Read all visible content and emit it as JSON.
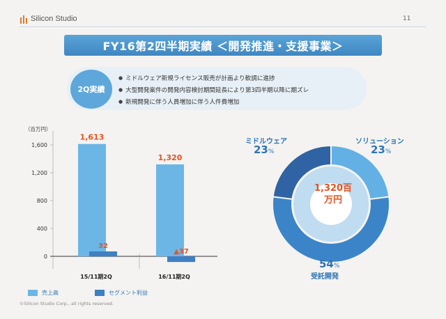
{
  "header": {
    "logo_text": "Silicon Studio",
    "page_number": "11"
  },
  "title": "FY16第2四半期実績 ＜開発推進・支援事業＞",
  "summary": {
    "badge": "2Q実績",
    "bullets": [
      "ミドルウェア新規ライセンス販売が計画より軟調に進捗",
      "大型開発案件の開発内容検討期間延長により第3四半期以降に期ズレ",
      "新規開発に伴う人員増加に伴う人件費増加"
    ]
  },
  "chart_data": [
    {
      "type": "bar",
      "ylabel": "（百万円）",
      "ylim": [
        -100,
        1750
      ],
      "yticks": [
        0,
        400,
        800,
        1200,
        1600
      ],
      "ytick_labels": [
        "0",
        "400",
        "800",
        "1,200",
        "1,600"
      ],
      "categories": [
        "15/11期2Q",
        "16/11期2Q"
      ],
      "series": [
        {
          "name": "売上高",
          "values": [
            1613,
            1320
          ],
          "labels": [
            "1,613",
            "1,320"
          ]
        },
        {
          "name": "セグメント利益",
          "values": [
            32,
            -37
          ],
          "labels": [
            "32",
            "▲37"
          ]
        }
      ],
      "colors": {
        "sales": "#6cb6e6",
        "profit": "#3f7fc4",
        "label": "#e8521e"
      }
    },
    {
      "type": "pie",
      "center_label": [
        "1,320百",
        "万円"
      ],
      "slices": [
        {
          "name": "ミドルウェア",
          "value": 23,
          "pct_text": "23",
          "color": "#2f63a3"
        },
        {
          "name": "ソリューション",
          "value": 23,
          "pct_text": "23",
          "color": "#62b0e4"
        },
        {
          "name": "受託開発",
          "value": 54,
          "pct_text": "54",
          "color": "#3b84c8"
        }
      ],
      "pct_unit": "%"
    }
  ],
  "footer": {
    "copyright": "©Silicon Studio Corp., all rights reserved."
  }
}
